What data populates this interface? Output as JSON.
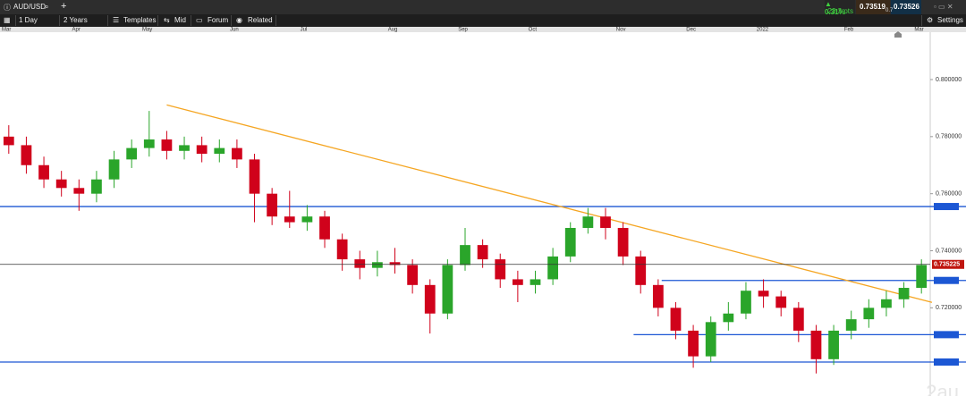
{
  "toolbar": {
    "symbol": "AUD/USD",
    "interval": "1 Day",
    "range": "2 Years",
    "buttons": [
      "Templates",
      "Mid",
      "Forum",
      "Related"
    ],
    "change": "▲ 0.31%",
    "change_pts": "23.3 pts",
    "bid": "0.73519",
    "ask": "0.73526",
    "spread": "0.7",
    "settings": "Settings"
  },
  "watermark": "2au",
  "chart_data": {
    "type": "candlestick",
    "categories": [
      "Mar",
      null,
      null,
      null,
      "Apr",
      null,
      null,
      null,
      "May",
      null,
      null,
      null,
      null,
      "Jun",
      null,
      null,
      null,
      "Jul",
      null,
      null,
      null,
      null,
      "Aug",
      null,
      null,
      null,
      "Sep",
      null,
      null,
      null,
      "Oct",
      null,
      null,
      null,
      null,
      "Nov",
      null,
      null,
      null,
      "Dec",
      null,
      null,
      null,
      "2022",
      null,
      null,
      null,
      null,
      "Feb",
      null,
      null,
      null,
      "Mar"
    ],
    "open": [
      0.78,
      0.777,
      0.77,
      0.765,
      0.762,
      0.76,
      0.765,
      0.772,
      0.776,
      0.779,
      0.775,
      0.777,
      0.774,
      0.776,
      0.772,
      0.76,
      0.752,
      0.75,
      0.752,
      0.744,
      0.737,
      0.734,
      0.736,
      0.735,
      0.728,
      0.718,
      0.735,
      0.742,
      0.737,
      0.73,
      0.728,
      0.73,
      0.738,
      0.748,
      0.752,
      0.748,
      0.738,
      0.728,
      0.72,
      0.712,
      0.703,
      0.715,
      0.718,
      0.726,
      0.724,
      0.72,
      0.712,
      0.702,
      0.712,
      0.716,
      0.72,
      0.723,
      0.727
    ],
    "high": [
      0.784,
      0.78,
      0.773,
      0.768,
      0.765,
      0.768,
      0.775,
      0.779,
      0.789,
      0.782,
      0.78,
      0.78,
      0.779,
      0.779,
      0.774,
      0.762,
      0.761,
      0.756,
      0.754,
      0.746,
      0.74,
      0.74,
      0.741,
      0.737,
      0.73,
      0.737,
      0.748,
      0.744,
      0.739,
      0.733,
      0.733,
      0.741,
      0.75,
      0.755,
      0.755,
      0.75,
      0.74,
      0.73,
      0.722,
      0.714,
      0.717,
      0.722,
      0.729,
      0.73,
      0.726,
      0.722,
      0.714,
      0.714,
      0.719,
      0.723,
      0.726,
      0.729,
      0.737
    ],
    "low": [
      0.774,
      0.767,
      0.762,
      0.759,
      0.754,
      0.757,
      0.762,
      0.769,
      0.773,
      0.772,
      0.772,
      0.771,
      0.771,
      0.769,
      0.75,
      0.749,
      0.748,
      0.747,
      0.741,
      0.733,
      0.73,
      0.731,
      0.732,
      0.725,
      0.711,
      0.716,
      0.733,
      0.734,
      0.727,
      0.722,
      0.725,
      0.728,
      0.736,
      0.746,
      0.744,
      0.735,
      0.725,
      0.717,
      0.709,
      0.699,
      0.701,
      0.712,
      0.716,
      0.72,
      0.717,
      0.708,
      0.697,
      0.7,
      0.709,
      0.713,
      0.717,
      0.72,
      0.725
    ],
    "close": [
      0.777,
      0.77,
      0.765,
      0.762,
      0.76,
      0.765,
      0.772,
      0.776,
      0.779,
      0.775,
      0.777,
      0.774,
      0.776,
      0.772,
      0.76,
      0.752,
      0.75,
      0.752,
      0.744,
      0.737,
      0.734,
      0.736,
      0.735,
      0.728,
      0.718,
      0.735,
      0.742,
      0.737,
      0.73,
      0.728,
      0.73,
      0.738,
      0.748,
      0.752,
      0.748,
      0.738,
      0.728,
      0.72,
      0.712,
      0.703,
      0.715,
      0.718,
      0.726,
      0.724,
      0.72,
      0.712,
      0.702,
      0.712,
      0.716,
      0.72,
      0.723,
      0.727,
      0.735
    ],
    "up_color": "#2aa52a",
    "down_color": "#d0021b",
    "ylim": [
      0.6891,
      0.8166
    ],
    "yticks": [
      {
        "value": 0.8,
        "label": "0.800000"
      },
      {
        "value": 0.78,
        "label": "0.780000"
      },
      {
        "value": 0.76,
        "label": "0.760000"
      },
      {
        "value": 0.74,
        "label": "0.740000"
      },
      {
        "value": 0.72,
        "label": "0.720000"
      }
    ],
    "last_price": 0.735225,
    "last_price_color": "#c0160f",
    "horizontal_lines": [
      {
        "value": 0.7555,
        "color": "#1c57d4"
      },
      {
        "value": 0.7296,
        "start": 37.2,
        "color": "#1c57d4"
      },
      {
        "value": 0.7106,
        "start": 35.6,
        "color": "#1c57d4"
      },
      {
        "value": 0.701,
        "color": "#1c57d4"
      }
    ],
    "trendline": {
      "x": [
        9,
        52.6
      ],
      "y": [
        0.7911,
        0.7219
      ],
      "color": "#f5a623"
    }
  }
}
